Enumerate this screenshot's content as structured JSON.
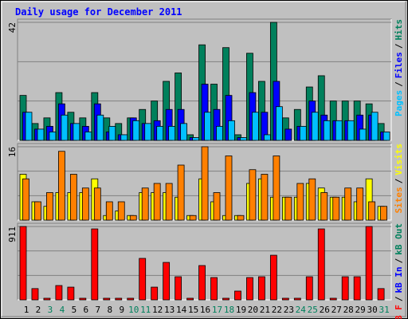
{
  "chart_data": [
    {
      "type": "bar",
      "title": "Daily usage for December 2011",
      "ylim": [
        0,
        42
      ],
      "yticks": [
        42
      ],
      "grid": true,
      "legend_reversed": true,
      "separator": "/",
      "series": [
        {
          "name": "Hits",
          "color": "#00805c",
          "values": [
            16,
            6,
            8,
            17,
            10,
            8,
            17,
            8,
            6,
            8,
            11,
            14,
            21,
            24,
            2,
            34,
            20,
            33,
            2,
            31,
            21,
            42,
            8,
            11,
            19,
            23,
            14,
            14,
            14,
            13,
            6
          ]
        },
        {
          "name": "Files",
          "color": "#0000ff",
          "values": [
            10,
            4,
            5,
            13,
            6,
            5,
            13,
            3,
            2,
            8,
            6,
            7,
            11,
            11,
            1,
            20,
            11,
            16,
            1,
            17,
            10,
            21,
            4,
            5,
            14,
            9,
            7,
            7,
            9,
            9,
            3
          ]
        },
        {
          "name": "Pages",
          "color": "#00c0ff",
          "values": [
            10,
            4,
            3,
            9,
            6,
            3,
            9,
            5,
            2,
            7,
            6,
            5,
            5,
            6,
            1,
            10,
            5,
            7,
            1,
            10,
            2,
            12,
            0,
            5,
            10,
            7,
            7,
            7,
            4,
            10,
            3
          ]
        }
      ]
    },
    {
      "type": "bar",
      "ylim": [
        0,
        16
      ],
      "yticks": [
        16
      ],
      "grid": true,
      "legend_reversed": true,
      "separator": "/",
      "series": [
        {
          "name": "Visits",
          "color": "#ffff00",
          "values": [
            10,
            4,
            3,
            6,
            6,
            6,
            9,
            1,
            2,
            1,
            6,
            6,
            6,
            5,
            1,
            9,
            4,
            1,
            1,
            8,
            9,
            5,
            5,
            5,
            8,
            7,
            5,
            5,
            4,
            9,
            3
          ]
        },
        {
          "name": "Sites",
          "color": "#ff8000",
          "values": [
            9,
            4,
            6,
            15,
            10,
            7,
            7,
            4,
            4,
            1,
            7,
            8,
            8,
            12,
            1,
            16,
            6,
            14,
            1,
            11,
            10,
            14,
            5,
            8,
            9,
            6,
            5,
            7,
            7,
            4,
            3
          ]
        }
      ]
    },
    {
      "type": "bar",
      "ylim": [
        0,
        911
      ],
      "yticks": [
        911
      ],
      "grid": true,
      "legend_reversed": false,
      "separator": "/",
      "categories": [
        "1",
        "2",
        "3",
        "4",
        "5",
        "6",
        "7",
        "8",
        "9",
        "10",
        "11",
        "12",
        "13",
        "14",
        "15",
        "16",
        "17",
        "18",
        "19",
        "20",
        "21",
        "22",
        "23",
        "24",
        "25",
        "26",
        "27",
        "28",
        "29",
        "30",
        "31"
      ],
      "category_colors": [
        "#000000",
        "#000000",
        "#00805c",
        "#00805c",
        "#000000",
        "#000000",
        "#000000",
        "#000000",
        "#000000",
        "#00805c",
        "#00805c",
        "#000000",
        "#000000",
        "#000000",
        "#000000",
        "#000000",
        "#00805c",
        "#00805c",
        "#000000",
        "#000000",
        "#000000",
        "#000000",
        "#000000",
        "#00805c",
        "#00805c",
        "#000000",
        "#000000",
        "#000000",
        "#000000",
        "#000000",
        "#00805c"
      ],
      "series": [
        {
          "name": "kB F",
          "color": "#ff0000",
          "values": [
            911,
            140,
            20,
            178,
            158,
            20,
            881,
            20,
            20,
            20,
            515,
            158,
            465,
            287,
            20,
            426,
            277,
            20,
            109,
            277,
            287,
            554,
            20,
            20,
            287,
            881,
            20,
            287,
            287,
            911,
            140
          ]
        },
        {
          "name": "kB In",
          "color": "#0000ff",
          "values": [
            0,
            0,
            0,
            0,
            0,
            0,
            0,
            0,
            0,
            0,
            0,
            0,
            0,
            0,
            0,
            0,
            0,
            0,
            0,
            0,
            0,
            0,
            0,
            0,
            0,
            0,
            0,
            0,
            0,
            0,
            0
          ]
        },
        {
          "name": "kB Out",
          "color": "#00805c",
          "values": [
            0,
            0,
            0,
            0,
            0,
            0,
            0,
            0,
            0,
            0,
            0,
            0,
            0,
            0,
            0,
            0,
            0,
            0,
            0,
            0,
            0,
            0,
            0,
            0,
            0,
            0,
            0,
            0,
            0,
            0,
            0
          ]
        }
      ]
    }
  ]
}
